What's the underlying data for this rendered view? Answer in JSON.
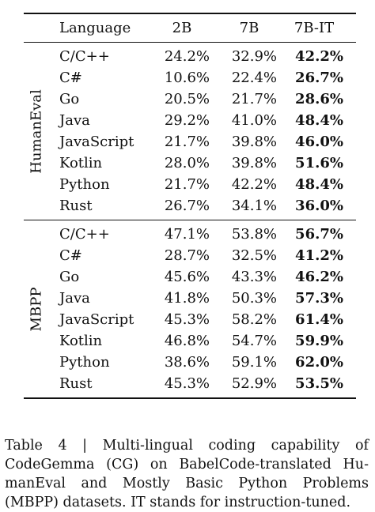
{
  "table": {
    "headers": [
      "Language",
      "2B",
      "7B",
      "7B-IT"
    ],
    "groups": [
      {
        "name": "HumanEval",
        "rows": [
          {
            "language": "C/C++",
            "v2b": "24.2%",
            "v7b": "32.9%",
            "v7bit": "42.2%"
          },
          {
            "language": "C#",
            "v2b": "10.6%",
            "v7b": "22.4%",
            "v7bit": "26.7%"
          },
          {
            "language": "Go",
            "v2b": "20.5%",
            "v7b": "21.7%",
            "v7bit": "28.6%"
          },
          {
            "language": "Java",
            "v2b": "29.2%",
            "v7b": "41.0%",
            "v7bit": "48.4%"
          },
          {
            "language": "JavaScript",
            "v2b": "21.7%",
            "v7b": "39.8%",
            "v7bit": "46.0%"
          },
          {
            "language": "Kotlin",
            "v2b": "28.0%",
            "v7b": "39.8%",
            "v7bit": "51.6%"
          },
          {
            "language": "Python",
            "v2b": "21.7%",
            "v7b": "42.2%",
            "v7bit": "48.4%"
          },
          {
            "language": "Rust",
            "v2b": "26.7%",
            "v7b": "34.1%",
            "v7bit": "36.0%"
          }
        ]
      },
      {
        "name": "MBPP",
        "rows": [
          {
            "language": "C/C++",
            "v2b": "47.1%",
            "v7b": "53.8%",
            "v7bit": "56.7%"
          },
          {
            "language": "C#",
            "v2b": "28.7%",
            "v7b": "32.5%",
            "v7bit": "41.2%"
          },
          {
            "language": "Go",
            "v2b": "45.6%",
            "v7b": "43.3%",
            "v7bit": "46.2%"
          },
          {
            "language": "Java",
            "v2b": "41.8%",
            "v7b": "50.3%",
            "v7bit": "57.3%"
          },
          {
            "language": "JavaScript",
            "v2b": "45.3%",
            "v7b": "58.2%",
            "v7bit": "61.4%"
          },
          {
            "language": "Kotlin",
            "v2b": "46.8%",
            "v7b": "54.7%",
            "v7bit": "59.9%"
          },
          {
            "language": "Python",
            "v2b": "38.6%",
            "v7b": "59.1%",
            "v7bit": "62.0%"
          },
          {
            "language": "Rust",
            "v2b": "45.3%",
            "v7b": "52.9%",
            "v7bit": "53.5%"
          }
        ]
      }
    ]
  },
  "caption": "Table 4 | Multi-lingual coding capability of CodeGemma (CG) on BabelCode-translated Hu­manEval and Mostly Basic Python Problems (MBPP) datasets. IT stands for instruction-tuned."
}
